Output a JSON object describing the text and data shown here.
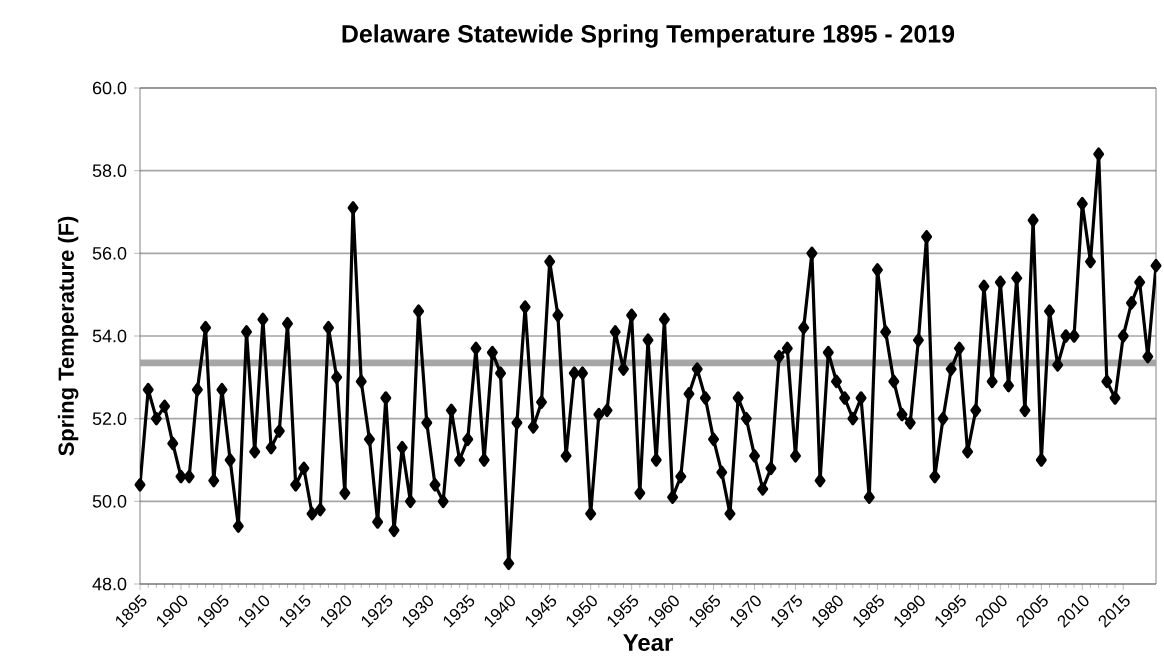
{
  "chart_data": {
    "type": "line",
    "title": "Delaware Statewide Spring Temperature 1895 - 2019",
    "xlabel": "Year",
    "ylabel": "Spring Temperature (F)",
    "x": [
      1895,
      1896,
      1897,
      1898,
      1899,
      1900,
      1901,
      1902,
      1903,
      1904,
      1905,
      1906,
      1907,
      1908,
      1909,
      1910,
      1911,
      1912,
      1913,
      1914,
      1915,
      1916,
      1917,
      1918,
      1919,
      1920,
      1921,
      1922,
      1923,
      1924,
      1925,
      1926,
      1927,
      1928,
      1929,
      1930,
      1931,
      1932,
      1933,
      1934,
      1935,
      1936,
      1937,
      1938,
      1939,
      1940,
      1941,
      1942,
      1943,
      1944,
      1945,
      1946,
      1947,
      1948,
      1949,
      1950,
      1951,
      1952,
      1953,
      1954,
      1955,
      1956,
      1957,
      1958,
      1959,
      1960,
      1961,
      1962,
      1963,
      1964,
      1965,
      1966,
      1967,
      1968,
      1969,
      1970,
      1971,
      1972,
      1973,
      1974,
      1975,
      1976,
      1977,
      1978,
      1979,
      1980,
      1981,
      1982,
      1983,
      1984,
      1985,
      1986,
      1987,
      1988,
      1989,
      1990,
      1991,
      1992,
      1993,
      1994,
      1995,
      1996,
      1997,
      1998,
      1999,
      2000,
      2001,
      2002,
      2003,
      2004,
      2005,
      2006,
      2007,
      2008,
      2009,
      2010,
      2011,
      2012,
      2013,
      2014,
      2015,
      2016,
      2017,
      2018,
      2019
    ],
    "series": [
      {
        "color": "#000000",
        "values": [
          50.4,
          52.7,
          52.0,
          52.3,
          51.4,
          50.6,
          50.6,
          52.7,
          54.2,
          50.5,
          52.7,
          51.0,
          49.4,
          54.1,
          51.2,
          54.4,
          51.3,
          51.7,
          54.3,
          50.4,
          50.8,
          49.7,
          49.8,
          54.2,
          53.0,
          50.2,
          57.1,
          52.9,
          51.5,
          49.5,
          52.5,
          49.3,
          51.3,
          50.0,
          54.6,
          51.9,
          50.4,
          50.0,
          52.2,
          51.0,
          51.5,
          53.7,
          51.0,
          53.6,
          53.1,
          48.5,
          51.9,
          54.7,
          51.8,
          52.4,
          55.8,
          54.5,
          51.1,
          53.1,
          53.1,
          49.7,
          52.1,
          52.2,
          54.1,
          53.2,
          54.5,
          50.2,
          53.9,
          51.0,
          54.4,
          50.1,
          50.6,
          52.6,
          53.2,
          52.5,
          51.5,
          50.7,
          49.7,
          52.5,
          52.0,
          51.1,
          50.3,
          50.8,
          53.5,
          53.7,
          51.1,
          54.2,
          56.0,
          50.5,
          53.6,
          52.9,
          52.5,
          52.0,
          52.5,
          50.1,
          55.6,
          54.1,
          52.9,
          52.1,
          51.9,
          53.9,
          56.4,
          50.6,
          52.0,
          53.2,
          53.7,
          51.2,
          52.2,
          55.2,
          52.9,
          55.3,
          52.8,
          55.4,
          52.2,
          56.8,
          51.0,
          54.6,
          53.3,
          54.0,
          54.0,
          57.2,
          55.8,
          58.4,
          52.9,
          52.5,
          54.0,
          54.8,
          55.3,
          53.5,
          55.7
        ]
      }
    ],
    "xlim": [
      1895,
      2019
    ],
    "xticks": [
      1895,
      1900,
      1905,
      1910,
      1915,
      1920,
      1925,
      1930,
      1935,
      1940,
      1945,
      1950,
      1955,
      1960,
      1965,
      1970,
      1975,
      1980,
      1985,
      1990,
      1995,
      2000,
      2005,
      2010,
      2015
    ],
    "ylim": [
      48,
      60
    ],
    "yticks": [
      {
        "value": 48,
        "label": "48.0"
      },
      {
        "value": 50,
        "label": "50.0"
      },
      {
        "value": 52,
        "label": "52.0"
      },
      {
        "value": 54,
        "label": "54.0"
      },
      {
        "value": 56,
        "label": "56.0"
      },
      {
        "value": 58,
        "label": "58.0"
      },
      {
        "value": 60,
        "label": "60.0"
      }
    ],
    "ref_lines": [
      {
        "axis": "y",
        "value": 53.35,
        "color": "#a6a6a6"
      }
    ],
    "grid": "y",
    "legend": false,
    "marker": "diamond",
    "line_style": "solid"
  }
}
